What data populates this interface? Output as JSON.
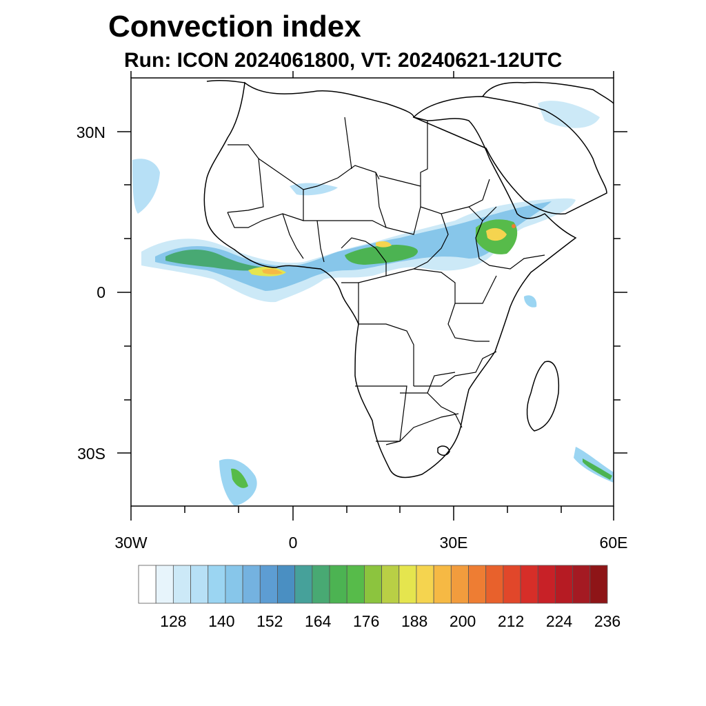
{
  "title": "Convection index",
  "subtitle": "Run: ICON 2024061800,  VT: 20240621-12UTC",
  "map": {
    "region": "Africa",
    "lat_range": [
      -40,
      40
    ],
    "lon_range": [
      -30,
      60
    ],
    "lat_tick_labels": [
      "30N",
      "0",
      "30S"
    ],
    "lon_tick_labels": [
      "30W",
      "0",
      "30E",
      "60E"
    ],
    "land_outline_color": "#000000",
    "background_color": "#ffffff"
  },
  "colorbar": {
    "label_values": [
      "128",
      "140",
      "152",
      "164",
      "176",
      "188",
      "200",
      "212",
      "224",
      "236"
    ],
    "colors": [
      "#ffffff",
      "#e7f4fb",
      "#cce9f7",
      "#b7e0f6",
      "#9bd5f2",
      "#87c6ea",
      "#74b2e0",
      "#5d9dd3",
      "#4a8fc2",
      "#46a19a",
      "#48a973",
      "#4cb352",
      "#57bb4a",
      "#8cc43e",
      "#b9cf45",
      "#e5e54e",
      "#f5d44f",
      "#f6b944",
      "#f29c3d",
      "#ee7d33",
      "#e8612c",
      "#e1472a",
      "#d62e28",
      "#c82127",
      "#b61b23",
      "#a41a22",
      "#8e1517"
    ]
  }
}
